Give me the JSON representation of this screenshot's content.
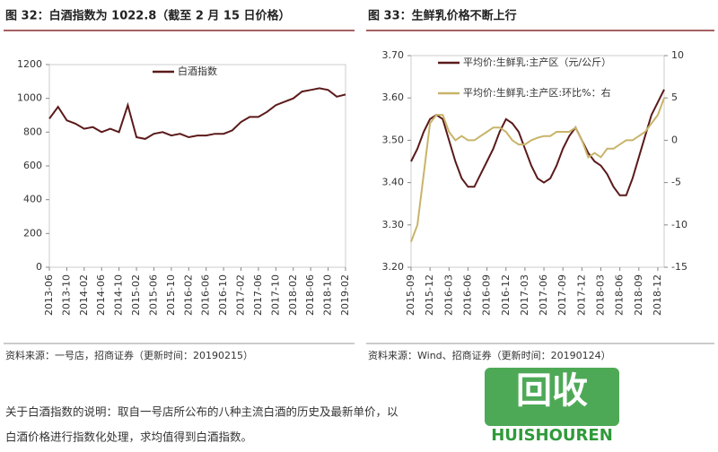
{
  "chart_data": [
    {
      "type": "line",
      "title": "图 32：白酒指数为 1022.8（截至 2 月 15 日价格）",
      "categories": [
        "2013-06",
        null,
        "2013-10",
        null,
        "2014-02",
        null,
        "2014-06",
        null,
        "2014-10",
        null,
        "2015-02",
        null,
        "2015-06",
        null,
        "2015-10",
        null,
        "2016-02",
        null,
        "2016-06",
        null,
        "2016-10",
        null,
        "2017-02",
        null,
        "2017-06",
        null,
        "2017-10",
        null,
        "2018-02",
        null,
        "2018-06",
        null,
        "2018-10",
        null,
        "2019-02"
      ],
      "series": [
        {
          "name": "白酒指数",
          "color": "#5b1a1a",
          "values": [
            880,
            950,
            870,
            850,
            820,
            830,
            800,
            820,
            800,
            960,
            770,
            760,
            790,
            800,
            780,
            790,
            770,
            780,
            780,
            790,
            790,
            810,
            860,
            890,
            890,
            920,
            960,
            980,
            1000,
            1040,
            1050,
            1060,
            1050,
            1010,
            1022.8
          ]
        }
      ],
      "ylim": [
        0,
        1200
      ],
      "yticks": [
        0,
        200,
        400,
        600,
        800,
        1000,
        1200
      ],
      "legend": "top",
      "source": "资料来源：一号店，招商证券（更新时间：20190215）"
    },
    {
      "type": "line",
      "title": "图 33：生鲜乳价格不断上行",
      "categories": [
        "2015-09",
        null,
        null,
        "2015-12",
        null,
        null,
        "2016-03",
        null,
        null,
        "2016-06",
        null,
        null,
        "2016-09",
        null,
        null,
        "2016-12",
        null,
        null,
        "2017-03",
        null,
        null,
        "2017-06",
        null,
        null,
        "2017-09",
        null,
        null,
        "2017-12",
        null,
        null,
        "2018-03",
        null,
        null,
        "2018-06",
        null,
        null,
        "2018-09",
        null,
        null,
        "2018-12",
        null
      ],
      "series": [
        {
          "name": "平均价:生鲜乳:主产区（元/公斤）",
          "color": "#5b1a1a",
          "values": [
            3.45,
            3.48,
            3.52,
            3.55,
            3.56,
            3.55,
            3.5,
            3.45,
            3.41,
            3.39,
            3.39,
            3.42,
            3.45,
            3.48,
            3.52,
            3.55,
            3.54,
            3.52,
            3.48,
            3.44,
            3.41,
            3.4,
            3.41,
            3.44,
            3.48,
            3.51,
            3.53,
            3.5,
            3.47,
            3.45,
            3.44,
            3.42,
            3.39,
            3.37,
            3.37,
            3.41,
            3.46,
            3.51,
            3.56,
            3.59,
            3.62
          ]
        },
        {
          "name": "平均价:生鲜乳:主产区:环比%：右",
          "color": "#c8b46a",
          "axis": "y2",
          "values": [
            -12,
            -10,
            -4,
            2,
            3,
            3,
            1,
            0,
            0.5,
            0,
            0,
            0.5,
            1,
            1.5,
            1.5,
            1,
            0,
            -0.5,
            -0.5,
            0,
            0.3,
            0.5,
            0.5,
            1,
            1,
            1,
            1.5,
            0,
            -2,
            -1.5,
            -2,
            -1,
            -1,
            -0.5,
            0,
            0,
            0.5,
            1,
            2,
            3,
            5
          ]
        }
      ],
      "ylim": [
        3.2,
        3.7
      ],
      "yticks": [
        {
          "value": 3.2,
          "label": "3.20"
        },
        {
          "value": 3.3,
          "label": "3.30"
        },
        {
          "value": 3.4,
          "label": "3.40"
        },
        {
          "value": 3.5,
          "label": "3.50"
        },
        {
          "value": 3.6,
          "label": "3.60"
        },
        {
          "value": 3.7,
          "label": "3.70"
        }
      ],
      "y2lim": [
        -15,
        10
      ],
      "y2ticks": [
        -15,
        -10,
        -5,
        0,
        5,
        10
      ],
      "legend": "top left",
      "source": "资料来源：Wind、招商证券（更新时间：20190124）"
    }
  ],
  "footnote": [
    "关于白酒指数的说明：取自一号店所公布的八种主流白酒的历史及最新单价，以",
    "白酒价格进行指数化处理，求均值得到白酒指数。"
  ],
  "watermark": {
    "text": "回收",
    "latin": "HUISHOUREN"
  }
}
